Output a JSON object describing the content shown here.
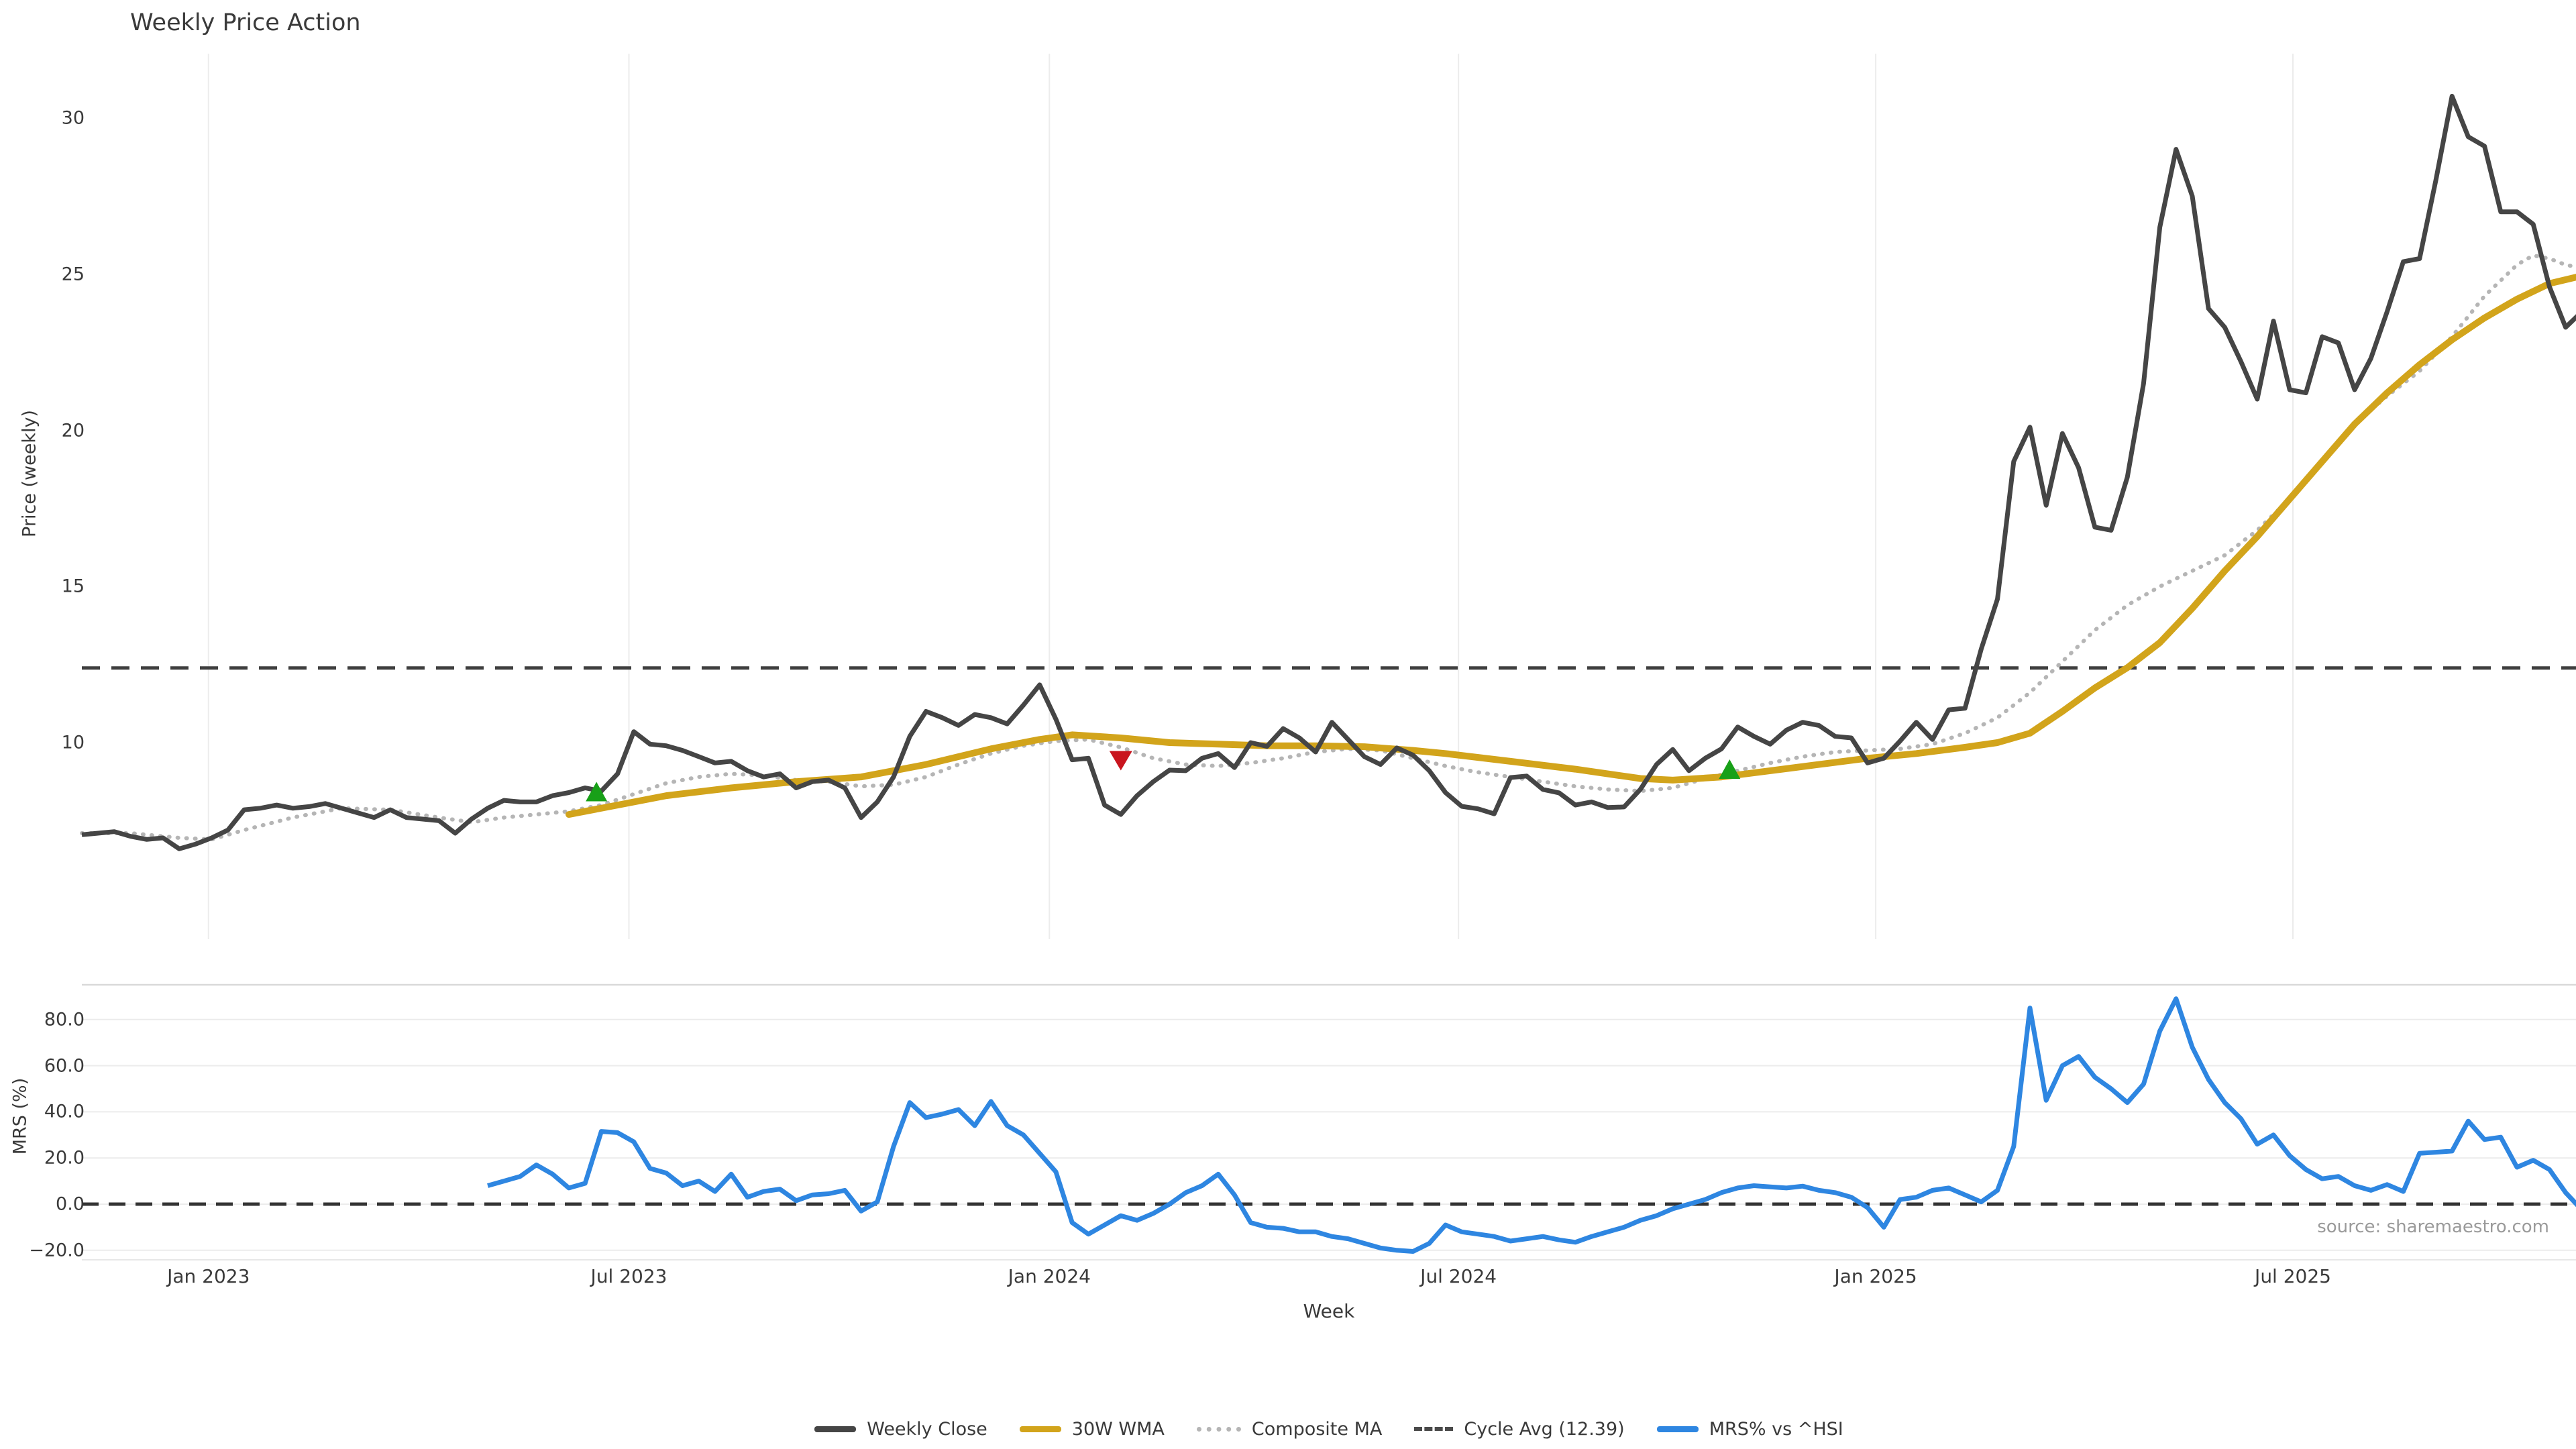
{
  "title": "Weekly Price Action",
  "source_note": "source: sharemaestro.com",
  "colors": {
    "weekly_close": "#454545",
    "wma_30w": "#D2A41B",
    "composite_ma": "#B5B5B5",
    "cycle_avg": "#3F3F3F",
    "mrs_line": "#2E86E1",
    "buy_marker": "#18A018",
    "sell_marker": "#C9151E",
    "gridline": "#ECECEC",
    "spine": "#D9D9D9",
    "text": "#3A3A3A",
    "muted_text": "#9A9A9A"
  },
  "x_axis": {
    "label": "Week",
    "ticks": [
      {
        "label": "Jan 2023",
        "week": 7.8
      },
      {
        "label": "Jul 2023",
        "week": 33.7
      },
      {
        "label": "Jan 2024",
        "week": 59.6
      },
      {
        "label": "Jul 2024",
        "week": 84.8
      },
      {
        "label": "Jan 2025",
        "week": 110.5
      },
      {
        "label": "Jul 2025",
        "week": 136.2
      }
    ]
  },
  "legend": [
    {
      "label": "Weekly Close",
      "swatch": "solid",
      "color": "#454545"
    },
    {
      "label": "30W WMA",
      "swatch": "solid",
      "color": "#D2A41B"
    },
    {
      "label": "Composite MA",
      "swatch": "dotted",
      "color": "#B5B5B5"
    },
    {
      "label": "Cycle Avg (12.39)",
      "swatch": "dashed",
      "color": "#4A4A4A"
    },
    {
      "label": "MRS% vs ^HSI",
      "swatch": "solid",
      "color": "#2E86E1"
    }
  ],
  "chart_data": [
    {
      "type": "line",
      "id": "price",
      "ylabel": "Price (weekly)",
      "ylim": [
        3.7,
        32.1
      ],
      "grid": "vertical-months",
      "yticks": [
        {
          "value": 10,
          "label": "10"
        },
        {
          "value": 15,
          "label": "15"
        },
        {
          "value": 20,
          "label": "20"
        },
        {
          "value": 25,
          "label": "25"
        },
        {
          "value": 30,
          "label": "30"
        }
      ],
      "cycle_avg_value": 12.39,
      "series": [
        {
          "name": "Weekly Close",
          "start_week": 0,
          "values": [
            7.05,
            7.1,
            7.15,
            7.0,
            6.9,
            6.95,
            6.6,
            6.75,
            6.95,
            7.2,
            7.85,
            7.9,
            8.0,
            7.9,
            7.95,
            8.05,
            7.9,
            7.75,
            7.6,
            7.85,
            7.6,
            7.55,
            7.5,
            7.1,
            7.55,
            7.9,
            8.15,
            8.1,
            8.1,
            8.3,
            8.4,
            8.55,
            8.45,
            9.0,
            10.35,
            9.95,
            9.9,
            9.75,
            9.55,
            9.35,
            9.4,
            9.1,
            8.9,
            9.0,
            8.55,
            8.75,
            8.8,
            8.55,
            7.6,
            8.1,
            8.9,
            10.2,
            11.0,
            10.8,
            10.55,
            10.9,
            10.8,
            10.6,
            11.2,
            11.85,
            10.75,
            9.45,
            9.5,
            8.0,
            7.7,
            8.3,
            8.75,
            9.12,
            9.1,
            9.5,
            9.65,
            9.2,
            10.0,
            9.88,
            10.45,
            10.15,
            9.7,
            10.65,
            10.1,
            9.55,
            9.3,
            9.83,
            9.6,
            9.1,
            8.4,
            7.96,
            7.88,
            7.72,
            8.88,
            8.93,
            8.5,
            8.39,
            8.0,
            8.1,
            7.92,
            7.94,
            8.5,
            9.3,
            9.78,
            9.1,
            9.5,
            9.8,
            10.5,
            10.2,
            9.95,
            10.4,
            10.65,
            10.55,
            10.2,
            10.15,
            9.35,
            9.5,
            10.05,
            10.65,
            10.1,
            11.05,
            11.1,
            13.0,
            14.6,
            19.0,
            20.1,
            17.6,
            19.9,
            18.8,
            16.9,
            16.8,
            18.5,
            21.5,
            26.5,
            29.0,
            27.5,
            23.9,
            23.3,
            22.2,
            21.0,
            23.5,
            21.3,
            21.2,
            23.0,
            22.8,
            21.3,
            22.3,
            23.8,
            25.4,
            25.5,
            28.0,
            30.7,
            29.4,
            29.1,
            27.0,
            27.0,
            26.6,
            24.6,
            23.3,
            23.8
          ]
        },
        {
          "name": "30W WMA",
          "points": [
            [
              30,
              7.7
            ],
            [
              33,
              8.0
            ],
            [
              36,
              8.3
            ],
            [
              40,
              8.55
            ],
            [
              44,
              8.75
            ],
            [
              48,
              8.9
            ],
            [
              52,
              9.3
            ],
            [
              56,
              9.8
            ],
            [
              59,
              10.1
            ],
            [
              61,
              10.25
            ],
            [
              64,
              10.15
            ],
            [
              67,
              10.0
            ],
            [
              70,
              9.95
            ],
            [
              73,
              9.9
            ],
            [
              76,
              9.9
            ],
            [
              79,
              9.87
            ],
            [
              82,
              9.75
            ],
            [
              84,
              9.65
            ],
            [
              88,
              9.4
            ],
            [
              92,
              9.15
            ],
            [
              96,
              8.85
            ],
            [
              98,
              8.8
            ],
            [
              101,
              8.9
            ],
            [
              104,
              9.1
            ],
            [
              107,
              9.3
            ],
            [
              110,
              9.5
            ],
            [
              113,
              9.65
            ],
            [
              116,
              9.85
            ],
            [
              118,
              10.0
            ],
            [
              120,
              10.3
            ],
            [
              122,
              11.0
            ],
            [
              124,
              11.75
            ],
            [
              126,
              12.4
            ],
            [
              128,
              13.2
            ],
            [
              130,
              14.3
            ],
            [
              132,
              15.5
            ],
            [
              134,
              16.6
            ],
            [
              136,
              17.8
            ],
            [
              138,
              19.0
            ],
            [
              140,
              20.2
            ],
            [
              142,
              21.2
            ],
            [
              144,
              22.1
            ],
            [
              146,
              22.9
            ],
            [
              148,
              23.6
            ],
            [
              150,
              24.2
            ],
            [
              152,
              24.7
            ],
            [
              154,
              24.95
            ]
          ]
        },
        {
          "name": "Composite MA",
          "points": [
            [
              0,
              7.1
            ],
            [
              3,
              7.1
            ],
            [
              6,
              6.95
            ],
            [
              8,
              6.9
            ],
            [
              10,
              7.2
            ],
            [
              13,
              7.6
            ],
            [
              16,
              7.9
            ],
            [
              19,
              7.85
            ],
            [
              22,
              7.6
            ],
            [
              24,
              7.45
            ],
            [
              26,
              7.6
            ],
            [
              28,
              7.7
            ],
            [
              30,
              7.8
            ],
            [
              32,
              8.0
            ],
            [
              34,
              8.35
            ],
            [
              36,
              8.7
            ],
            [
              38,
              8.9
            ],
            [
              40,
              9.0
            ],
            [
              42,
              8.95
            ],
            [
              44,
              8.8
            ],
            [
              46,
              8.75
            ],
            [
              48,
              8.6
            ],
            [
              50,
              8.65
            ],
            [
              52,
              8.9
            ],
            [
              54,
              9.3
            ],
            [
              56,
              9.65
            ],
            [
              58,
              9.9
            ],
            [
              60,
              10.05
            ],
            [
              62,
              10.1
            ],
            [
              64,
              9.85
            ],
            [
              66,
              9.5
            ],
            [
              68,
              9.3
            ],
            [
              70,
              9.25
            ],
            [
              72,
              9.35
            ],
            [
              74,
              9.5
            ],
            [
              76,
              9.7
            ],
            [
              78,
              9.8
            ],
            [
              80,
              9.75
            ],
            [
              82,
              9.5
            ],
            [
              84,
              9.25
            ],
            [
              86,
              9.05
            ],
            [
              88,
              8.9
            ],
            [
              90,
              8.75
            ],
            [
              92,
              8.6
            ],
            [
              94,
              8.5
            ],
            [
              96,
              8.45
            ],
            [
              98,
              8.55
            ],
            [
              100,
              8.85
            ],
            [
              102,
              9.1
            ],
            [
              104,
              9.35
            ],
            [
              106,
              9.55
            ],
            [
              108,
              9.7
            ],
            [
              110,
              9.75
            ],
            [
              112,
              9.8
            ],
            [
              114,
              9.95
            ],
            [
              116,
              10.3
            ],
            [
              118,
              10.8
            ],
            [
              120,
              11.6
            ],
            [
              122,
              12.6
            ],
            [
              124,
              13.6
            ],
            [
              126,
              14.4
            ],
            [
              128,
              15.0
            ],
            [
              130,
              15.5
            ],
            [
              132,
              16.0
            ],
            [
              134,
              16.8
            ],
            [
              136,
              17.8
            ],
            [
              138,
              19.0
            ],
            [
              140,
              20.2
            ],
            [
              142,
              21.1
            ],
            [
              144,
              21.9
            ],
            [
              146,
              23.0
            ],
            [
              148,
              24.3
            ],
            [
              150,
              25.3
            ],
            [
              151,
              25.6
            ],
            [
              152,
              25.5
            ],
            [
              153,
              25.3
            ],
            [
              154,
              25.2
            ]
          ]
        }
      ],
      "markers": [
        {
          "signal": "buy",
          "shape": "triangle-up",
          "week": 31.7,
          "price": 8.4
        },
        {
          "signal": "sell",
          "shape": "triangle-down",
          "week": 64.0,
          "price": 9.43
        },
        {
          "signal": "buy",
          "shape": "triangle-up",
          "week": 101.5,
          "price": 9.12
        }
      ]
    },
    {
      "type": "line",
      "id": "mrs",
      "ylabel": "MRS (%)",
      "ylim": [
        -24.7,
        95
      ],
      "grid": "horizontal",
      "yticks": [
        {
          "value": -20,
          "label": "−20.0"
        },
        {
          "value": 0,
          "label": "0.0"
        },
        {
          "value": 20,
          "label": "20.0"
        },
        {
          "value": 40,
          "label": "40.0"
        },
        {
          "value": 60,
          "label": "60.0"
        },
        {
          "value": 80,
          "label": "80.0"
        }
      ],
      "zero_line_value": 0.0,
      "series": [
        {
          "name": "MRS% vs ^HSI",
          "start_week": 25,
          "values": [
            8,
            10,
            12,
            17,
            13,
            7,
            9,
            31.5,
            31,
            27,
            15.5,
            13.5,
            8,
            10,
            5.5,
            13,
            3,
            5.5,
            6.5,
            1.5,
            4,
            4.5,
            6,
            -3,
            1,
            25,
            44,
            37.5,
            39,
            41,
            34,
            44.5,
            34,
            30,
            22,
            14,
            -8,
            -13,
            -9,
            -5,
            -7,
            -4,
            0,
            5,
            8,
            13,
            4,
            -8,
            -10,
            -10.5,
            -12,
            -12,
            -14,
            -15,
            -17,
            -19,
            -20,
            -20.5,
            -17,
            -9,
            -12,
            -13,
            -14,
            -16,
            -15,
            -14,
            -15.5,
            -16.5,
            -14,
            -12,
            -10,
            -7,
            -5,
            -2,
            0,
            2,
            5,
            7,
            8,
            7.5,
            7,
            7.8,
            6,
            5,
            3,
            -1.5,
            -10,
            2,
            3,
            6,
            7,
            4,
            1,
            6,
            25,
            85,
            45,
            60,
            64,
            55,
            50,
            44,
            52,
            75,
            89,
            68,
            54,
            44,
            37,
            26,
            30,
            21,
            15,
            11,
            12,
            8,
            6,
            8.5,
            5.5,
            22,
            22.5,
            23,
            36,
            28,
            29,
            16,
            19,
            15,
            5,
            -2.5
          ]
        }
      ]
    }
  ]
}
